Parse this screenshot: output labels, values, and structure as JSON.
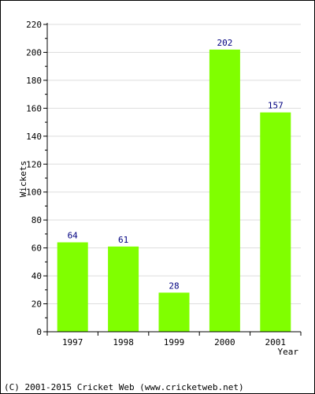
{
  "chart_data": {
    "type": "bar",
    "categories": [
      "1997",
      "1998",
      "1999",
      "2000",
      "2001"
    ],
    "values": [
      64,
      61,
      28,
      202,
      157
    ],
    "data_labels": [
      "64",
      "61",
      "28",
      "202",
      "157"
    ],
    "title": "",
    "xlabel": "Year",
    "ylabel": "Wickets",
    "ylim": [
      0,
      220
    ],
    "yticks": [
      0,
      20,
      40,
      60,
      80,
      100,
      120,
      140,
      160,
      180,
      200,
      220
    ],
    "ytick_labels": [
      "0",
      "20",
      "40",
      "60",
      "80",
      "100",
      "120",
      "140",
      "160",
      "180",
      "200",
      "220"
    ],
    "grid": true,
    "legend": "none"
  },
  "footer": "(C) 2001-2015 Cricket Web (www.cricketweb.net)",
  "colors": {
    "bar": "#80ff00",
    "data_label": "#000080",
    "grid": "#dddddd",
    "axis": "#000000"
  }
}
